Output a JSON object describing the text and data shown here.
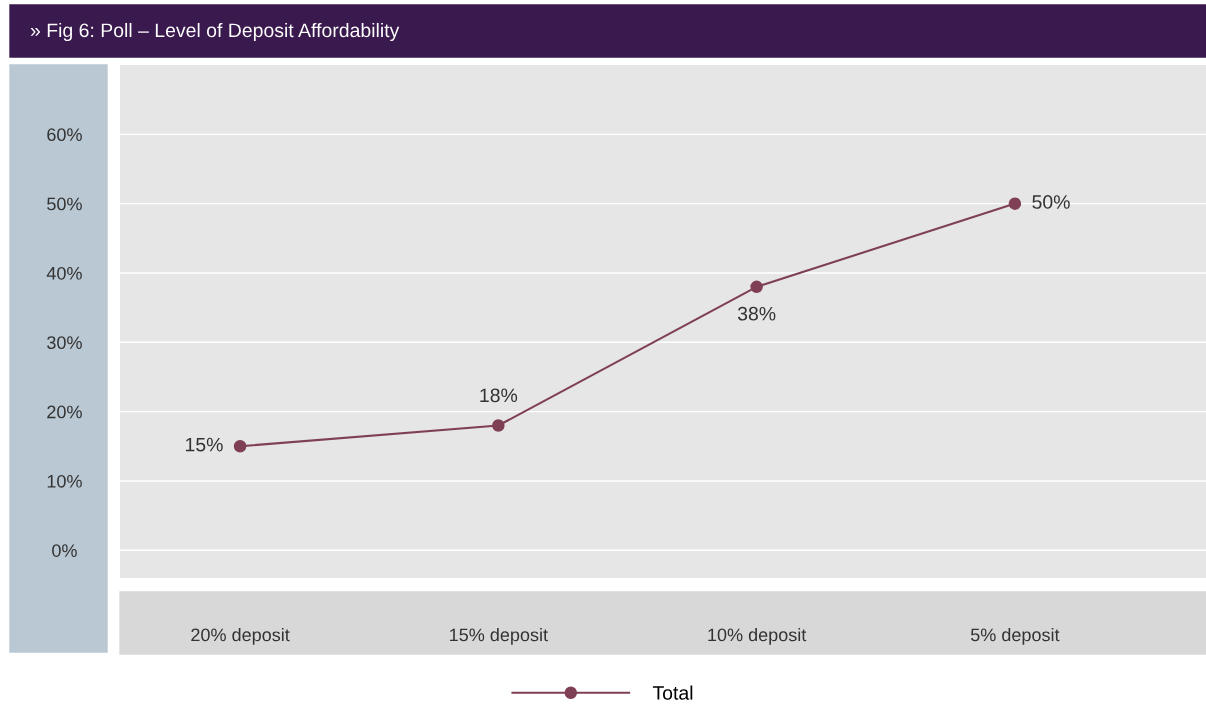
{
  "chart_data": {
    "type": "line",
    "title": "» Fig 6: Poll – Level of Deposit Affordability",
    "categories": [
      "20% deposit",
      "15% deposit",
      "10% deposit",
      "5% deposit"
    ],
    "series": [
      {
        "name": "Total",
        "color": "#7f3f55",
        "values": [
          15,
          18,
          38,
          50
        ]
      }
    ],
    "ylim": [
      -4,
      70
    ],
    "yticks": [
      {
        "value": 0,
        "label": "0%"
      },
      {
        "value": 10,
        "label": "10%"
      },
      {
        "value": 20,
        "label": "20%"
      },
      {
        "value": 30,
        "label": "30%"
      },
      {
        "value": 40,
        "label": "40%"
      },
      {
        "value": 50,
        "label": "50%"
      },
      {
        "value": 60,
        "label": "60%"
      }
    ],
    "value_labels": [
      "15%",
      "18%",
      "38%",
      "50%"
    ],
    "grid": "y",
    "legend": "bottom",
    "marker": "circle",
    "line_style": "solid"
  }
}
